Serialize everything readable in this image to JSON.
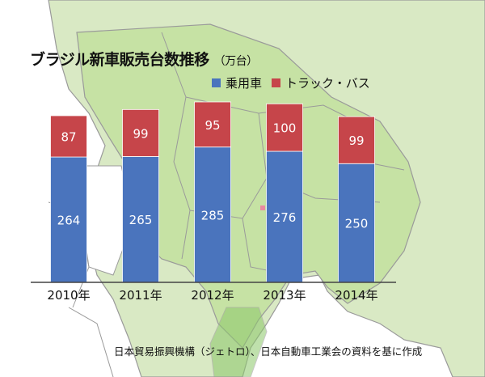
{
  "colors": {
    "passenger": "#4a74bd",
    "truck_bus": "#c6454a",
    "map_land": "#d9e9c4",
    "map_highlight": "#c6e2a4",
    "map_border": "#9a9a9a"
  },
  "chart_data": {
    "type": "bar",
    "stacked": true,
    "title": "ブラジル新車販売台数推移",
    "unit": "（万台）",
    "categories": [
      "2010年",
      "2011年",
      "2012年",
      "2013年",
      "2014年"
    ],
    "series": [
      {
        "name": "乗用車",
        "values": [
          264,
          265,
          285,
          276,
          250
        ]
      },
      {
        "name": "トラック・バス",
        "values": [
          87,
          99,
          95,
          100,
          99
        ]
      }
    ],
    "ylim": [
      0,
      400
    ],
    "grid": false,
    "legend_position": "top-right"
  },
  "source_note": "日本貿易振興機構（ジェトロ）、日本自動車工業会の資料を基に作成"
}
